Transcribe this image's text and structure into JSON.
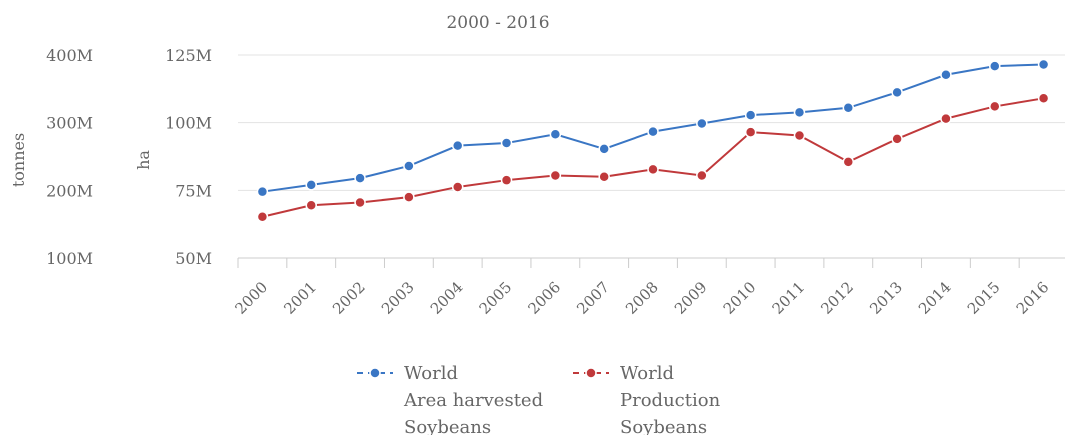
{
  "chart_data": {
    "type": "line",
    "title": "2000 - 2016",
    "categories": [
      "2000",
      "2001",
      "2002",
      "2003",
      "2004",
      "2005",
      "2006",
      "2007",
      "2008",
      "2009",
      "2010",
      "2011",
      "2012",
      "2013",
      "2014",
      "2015",
      "2016"
    ],
    "left_axis": {
      "label": "tonnes",
      "ticks": [
        "100M",
        "200M",
        "300M",
        "400M"
      ],
      "tick_values": [
        100000000,
        200000000,
        300000000,
        400000000
      ],
      "range": [
        100000000,
        400000000
      ]
    },
    "right_axis": {
      "label": "ha",
      "ticks": [
        "50M",
        "75M",
        "100M",
        "125M"
      ],
      "tick_values": [
        50000000,
        75000000,
        100000000,
        125000000
      ],
      "range": [
        50000000,
        125000000
      ]
    },
    "series": [
      {
        "name_lines": [
          "World",
          "Area harvested",
          "Soybeans"
        ],
        "axis": "ha",
        "color": "#3a76c4",
        "values": [
          74500000,
          77000000,
          79500000,
          84000000,
          91500000,
          92500000,
          95700000,
          90300000,
          96700000,
          99700000,
          102800000,
          103800000,
          105500000,
          111200000,
          117700000,
          120900000,
          121500000
        ]
      },
      {
        "name_lines": [
          "World",
          "Production",
          "Soybeans"
        ],
        "axis": "tonnes",
        "color": "#c0393b",
        "values": [
          161000000,
          178000000,
          182000000,
          190000000,
          205000000,
          215000000,
          222000000,
          220000000,
          231000000,
          222000000,
          286000000,
          281000000,
          242000000,
          276000000,
          306000000,
          324000000,
          336000000
        ]
      }
    ],
    "grid": "horizontal",
    "legend_position": "bottom"
  }
}
